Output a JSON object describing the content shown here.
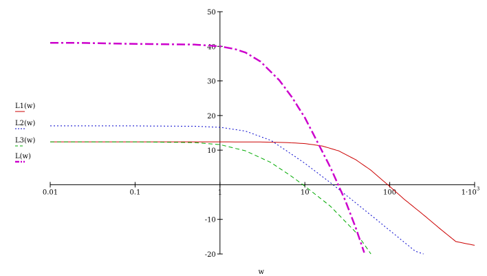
{
  "chart_data": {
    "type": "line",
    "xlabel": "w",
    "ylabel": "",
    "x_scale": "log",
    "xlim": [
      0.01,
      1000
    ],
    "ylim": [
      -20,
      50
    ],
    "x_ticks": [
      {
        "value": 0.01,
        "label": "0.01"
      },
      {
        "value": 0.1,
        "label": "0.1"
      },
      {
        "value": 1,
        "label": "1"
      },
      {
        "value": 10,
        "label": "10"
      },
      {
        "value": 100,
        "label": "100"
      },
      {
        "value": 1000,
        "label": "1·10",
        "exp": "3"
      }
    ],
    "y_ticks": [
      {
        "value": 50,
        "label": "50"
      },
      {
        "value": 40,
        "label": "40"
      },
      {
        "value": 30,
        "label": "30"
      },
      {
        "value": 20,
        "label": "20"
      },
      {
        "value": 10,
        "label": "10"
      },
      {
        "value": -10,
        "label": "-10"
      },
      {
        "value": -20,
        "label": "-20"
      }
    ],
    "series": [
      {
        "name": "L1(w)",
        "color": "#cc0000",
        "dash": "solid",
        "x": [
          0.01,
          0.1,
          1,
          3,
          6,
          10,
          16,
          25,
          40,
          60,
          100,
          150,
          250,
          400,
          600,
          1000
        ],
        "y": [
          12.4,
          12.4,
          12.4,
          12.35,
          12.2,
          11.9,
          11.2,
          9.8,
          7.2,
          4.2,
          -0.5,
          -4.3,
          -8.7,
          -12.9,
          -16.4,
          -17.5
        ]
      },
      {
        "name": "L2(w)",
        "color": "#0000cc",
        "dash": "dotted",
        "x": [
          0.01,
          0.1,
          0.5,
          1,
          2,
          4,
          7,
          10,
          20,
          40,
          70,
          100,
          200,
          250
        ],
        "y": [
          17,
          17,
          16.9,
          16.6,
          15.5,
          12.8,
          8.8,
          6.2,
          0.6,
          -5.3,
          -10.1,
          -13.2,
          -19.2,
          -20
        ]
      },
      {
        "name": "L3(w)",
        "color": "#00aa00",
        "dash": "dashed",
        "x": [
          0.01,
          0.1,
          0.5,
          1,
          2,
          4,
          7,
          10,
          20,
          40,
          60
        ],
        "y": [
          12.4,
          12.4,
          12.2,
          11.6,
          9.8,
          6.4,
          2.4,
          -0.4,
          -6.2,
          -13.8,
          -20
        ]
      },
      {
        "name": "L(w)",
        "color": "#cc00cc",
        "dash": "dashdot",
        "x": [
          0.01,
          0.02,
          0.1,
          0.5,
          1,
          1.5,
          2,
          3,
          5,
          7,
          10,
          15,
          20,
          30,
          40,
          50
        ],
        "y": [
          41,
          41,
          40.7,
          40.5,
          40,
          39.2,
          38.2,
          35.6,
          30.2,
          25.4,
          19.4,
          11,
          5,
          -4.6,
          -12.6,
          -19.6
        ]
      }
    ]
  }
}
